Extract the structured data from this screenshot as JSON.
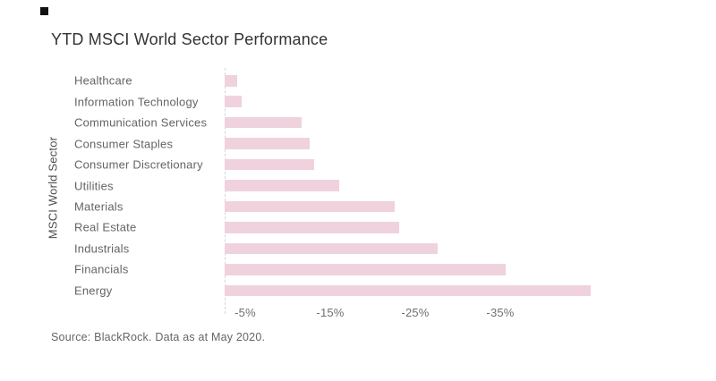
{
  "title": "YTD MSCI World Sector Performance",
  "source_note": "Source: BlackRock. Data as at May 2020.",
  "brand": {
    "square_color": "#111111"
  },
  "colors": {
    "bar": "#efd2dd",
    "title_text": "#333333",
    "label_text": "#646464",
    "tick_text": "#707070",
    "axis_line": "#d6d6d6",
    "source_text": "#666666"
  },
  "chart_data": {
    "type": "bar",
    "orientation": "horizontal",
    "title": "YTD MSCI World Sector Performance",
    "xlabel": "",
    "ylabel": "MSCI World Sector",
    "categories": [
      "Healthcare",
      "Information Technology",
      "Communication Services",
      "Consumer Staples",
      "Consumer Discretionary",
      "Utilities",
      "Materials",
      "Real Estate",
      "Industrials",
      "Financials",
      "Energy"
    ],
    "values": [
      -1.5,
      -2,
      -9,
      -10,
      -10.5,
      -13.5,
      -20,
      -20.5,
      -25,
      -33,
      -43
    ],
    "unit": "%",
    "x_ticks": [
      "-5%",
      "-15%",
      "-25%",
      "-35%"
    ],
    "x_tick_values": [
      -5,
      -15,
      -25,
      -35
    ],
    "xlim": [
      0,
      -45
    ],
    "grid": false,
    "legend": false,
    "bar_color": "#efd2dd"
  }
}
